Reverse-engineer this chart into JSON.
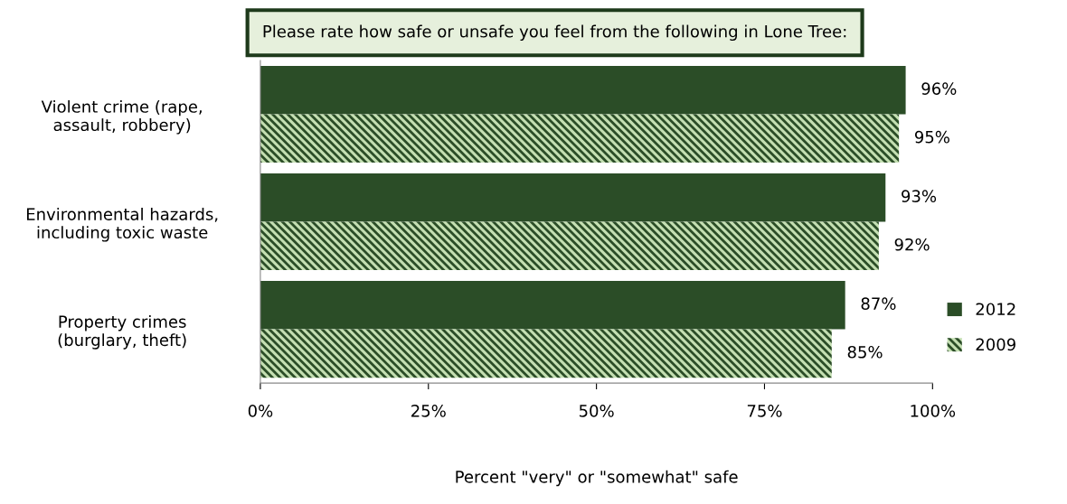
{
  "chart_data": {
    "type": "bar",
    "orientation": "horizontal",
    "title": "Please rate how safe or unsafe you feel from the following in Lone Tree:",
    "xlabel": "Percent \"very\" or \"somewhat\" safe",
    "categories": [
      "Violent crime (rape,\nassault, robbery)",
      "Environmental hazards,\nincluding toxic waste",
      "Property crimes\n(burglary, theft)"
    ],
    "series": [
      {
        "name": "2012",
        "color": "#2b4d27",
        "values": [
          96,
          93,
          87
        ],
        "value_labels": [
          "96%",
          "93%",
          "87%"
        ]
      },
      {
        "name": "2009",
        "color": "#c4dfb2",
        "values": [
          95,
          92,
          85
        ],
        "value_labels": [
          "95%",
          "92%",
          "85%"
        ]
      }
    ],
    "xlim": [
      0,
      100
    ],
    "xticks": [
      {
        "value": 0,
        "label": "0%"
      },
      {
        "value": 25,
        "label": "25%"
      },
      {
        "value": 50,
        "label": "50%"
      },
      {
        "value": 75,
        "label": "75%"
      },
      {
        "value": 100,
        "label": "100%"
      }
    ],
    "grid": false,
    "legend": "right"
  }
}
